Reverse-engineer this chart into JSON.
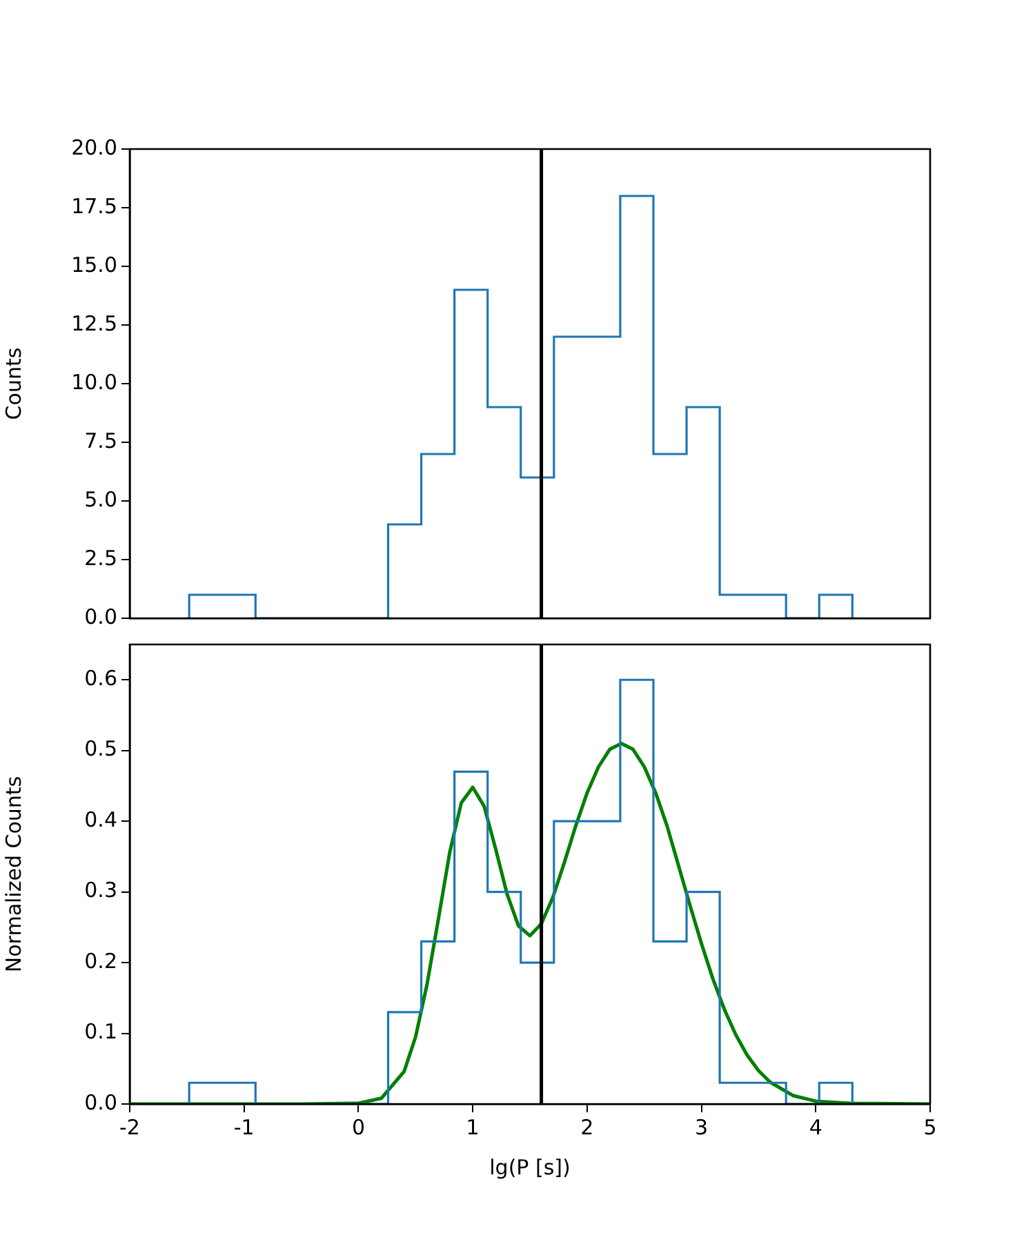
{
  "chart_data": [
    {
      "type": "histogram",
      "ylabel": "Counts",
      "bins": [
        -1.48,
        -1.19,
        -0.9,
        -0.61,
        -0.32,
        -0.03,
        0.26,
        0.55,
        0.84,
        1.13,
        1.42,
        1.71,
        2.0,
        2.29,
        2.58,
        2.87,
        3.16,
        3.45,
        3.74,
        4.03,
        4.32
      ],
      "values": [
        1,
        1,
        0,
        0,
        0,
        0,
        4,
        7,
        14,
        9,
        6,
        12,
        12,
        18,
        7,
        9,
        1,
        1,
        0,
        1
      ],
      "color": "#1f77b4",
      "xlim": [
        -2,
        5
      ],
      "ylim": [
        0,
        20
      ],
      "yticks": [
        {
          "value": 0,
          "label": "0.0"
        },
        {
          "value": 2.5,
          "label": "2.5"
        },
        {
          "value": 5,
          "label": "5.0"
        },
        {
          "value": 7.5,
          "label": "7.5"
        },
        {
          "value": 10,
          "label": "10.0"
        },
        {
          "value": 12.5,
          "label": "12.5"
        },
        {
          "value": 15,
          "label": "15.0"
        },
        {
          "value": 17.5,
          "label": "17.5"
        },
        {
          "value": 20,
          "label": "20.0"
        }
      ],
      "tick_labels": "y",
      "grid": false,
      "legend": false,
      "ref_lines": [
        {
          "axis": "x",
          "value": 1.6,
          "color": "#000000"
        }
      ]
    },
    {
      "type": "histogram",
      "xlabel": "lg(P [s])",
      "ylabel": "Normalized Counts",
      "bins": [
        -1.48,
        -1.19,
        -0.9,
        -0.61,
        -0.32,
        -0.03,
        0.26,
        0.55,
        0.84,
        1.13,
        1.42,
        1.71,
        2.0,
        2.29,
        2.58,
        2.87,
        3.16,
        3.45,
        3.74,
        4.03,
        4.32
      ],
      "series": [
        {
          "color": "#1f77b4",
          "values": [
            0.03,
            0.03,
            0,
            0,
            0,
            0,
            0.13,
            0.23,
            0.47,
            0.3,
            0.2,
            0.4,
            0.4,
            0.6,
            0.23,
            0.3,
            0.03,
            0.03,
            0,
            0.03
          ]
        },
        {
          "type": "line",
          "color": "#008000",
          "x": [
            -2,
            -0.5,
            0,
            0.2,
            0.4,
            0.5,
            0.6,
            0.7,
            0.8,
            0.9,
            1.0,
            1.1,
            1.2,
            1.3,
            1.4,
            1.5,
            1.6,
            1.7,
            1.8,
            1.9,
            2.0,
            2.1,
            2.2,
            2.3,
            2.4,
            2.5,
            2.6,
            2.7,
            2.8,
            2.9,
            3.0,
            3.1,
            3.2,
            3.3,
            3.4,
            3.5,
            3.6,
            3.8,
            4.0,
            4.3,
            5
          ],
          "values": [
            0,
            0,
            0.001,
            0.008,
            0.046,
            0.095,
            0.169,
            0.262,
            0.357,
            0.426,
            0.448,
            0.421,
            0.361,
            0.297,
            0.252,
            0.238,
            0.255,
            0.292,
            0.341,
            0.393,
            0.44,
            0.477,
            0.502,
            0.51,
            0.502,
            0.477,
            0.44,
            0.393,
            0.337,
            0.281,
            0.227,
            0.177,
            0.134,
            0.098,
            0.069,
            0.047,
            0.031,
            0.012,
            0.004,
            0.001,
            0
          ]
        }
      ],
      "xlim": [
        -2,
        5
      ],
      "xticks": [
        -2,
        -1,
        0,
        1,
        2,
        3,
        4,
        5
      ],
      "ylim": [
        0,
        0.65
      ],
      "yticks": [
        {
          "value": 0,
          "label": "0.0"
        },
        {
          "value": 0.1,
          "label": "0.1"
        },
        {
          "value": 0.2,
          "label": "0.2"
        },
        {
          "value": 0.3,
          "label": "0.3"
        },
        {
          "value": 0.4,
          "label": "0.4"
        },
        {
          "value": 0.5,
          "label": "0.5"
        },
        {
          "value": 0.6,
          "label": "0.6"
        }
      ],
      "grid": false,
      "legend": false,
      "ref_lines": [
        {
          "axis": "x",
          "value": 1.6,
          "color": "#000000"
        }
      ]
    }
  ]
}
